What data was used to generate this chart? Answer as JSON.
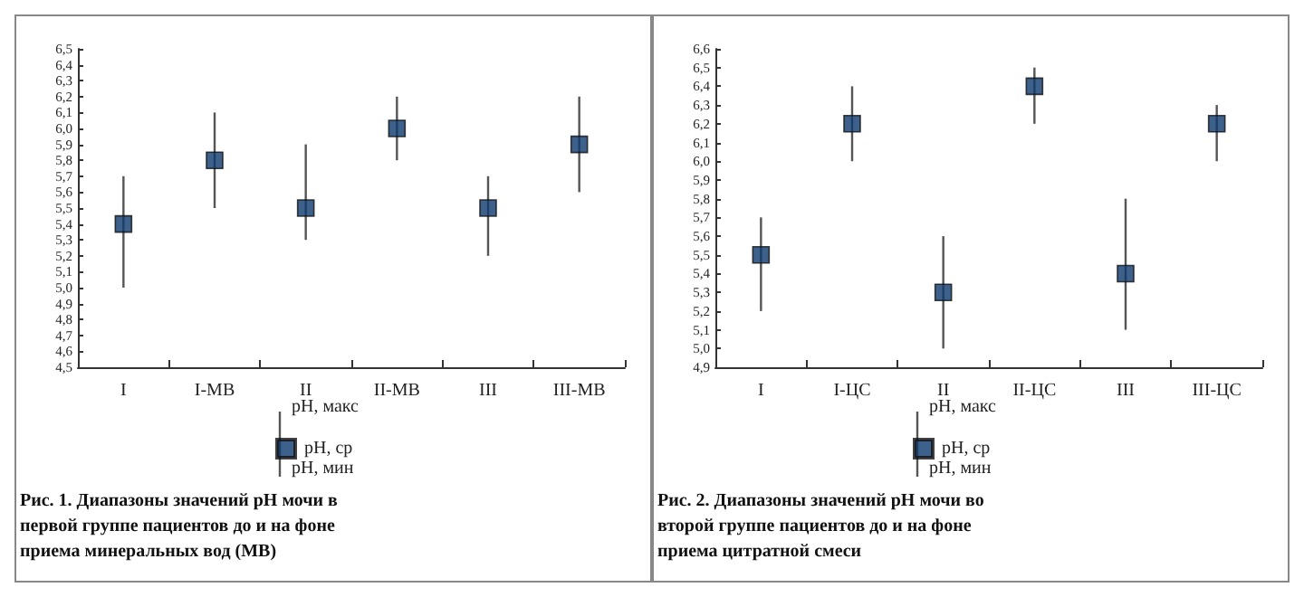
{
  "chart_data": [
    {
      "type": "scatter",
      "title": "Рис. 1. Диапазоны значений pH мочи в первой группе пациентов до и на фоне приема минеральных вод (МВ)",
      "categories": [
        "I",
        "I-МВ",
        "II",
        "II-МВ",
        "III",
        "III-МВ"
      ],
      "series": [
        {
          "name": "pH, ср",
          "color": "#0d3a6e",
          "values": [
            5.4,
            5.8,
            5.5,
            6.0,
            5.5,
            5.9
          ],
          "errors": [
            [
              5.0,
              5.7
            ],
            [
              5.5,
              6.1
            ],
            [
              5.3,
              5.9
            ],
            [
              5.8,
              6.2
            ],
            [
              5.2,
              5.7
            ],
            [
              5.6,
              6.2
            ]
          ]
        }
      ],
      "marker": "square",
      "legend": "bottom",
      "annotations": [
        "pH, макс",
        "pH, мин"
      ],
      "grid": false,
      "ylim": [
        4.5,
        6.5
      ],
      "yticks": [
        {
          "value": 4.5,
          "label": "4,5"
        },
        {
          "value": 4.6,
          "label": "4,6"
        },
        {
          "value": 4.7,
          "label": "4,7"
        },
        {
          "value": 4.8,
          "label": "4,8"
        },
        {
          "value": 4.9,
          "label": "4,9"
        },
        {
          "value": 5.0,
          "label": "5,0"
        },
        {
          "value": 5.1,
          "label": "5,1"
        },
        {
          "value": 5.2,
          "label": "5,2"
        },
        {
          "value": 5.3,
          "label": "5,3"
        },
        {
          "value": 5.4,
          "label": "5,4"
        },
        {
          "value": 5.5,
          "label": "5,5"
        },
        {
          "value": 5.6,
          "label": "5,6"
        },
        {
          "value": 5.7,
          "label": "5,7"
        },
        {
          "value": 5.8,
          "label": "5,8"
        },
        {
          "value": 5.9,
          "label": "5,9"
        },
        {
          "value": 6.0,
          "label": "6,0"
        },
        {
          "value": 6.1,
          "label": "6,1"
        },
        {
          "value": 6.2,
          "label": "6,2"
        },
        {
          "value": 6.3,
          "label": "6,3"
        },
        {
          "value": 6.4,
          "label": "6,4"
        },
        {
          "value": 6.5,
          "label": "6,5"
        }
      ]
    },
    {
      "type": "scatter",
      "title": "Рис. 2. Диапазоны значений pH мочи во второй группе пациентов до и на фоне приема цитратной смеси",
      "categories": [
        "I",
        "I-ЦС",
        "II",
        "II-ЦС",
        "III",
        "III-ЦС"
      ],
      "series": [
        {
          "name": "pH, ср",
          "color": "#0d3a6e",
          "values": [
            5.5,
            6.2,
            5.3,
            6.4,
            5.4,
            6.2
          ],
          "errors": [
            [
              5.2,
              5.7
            ],
            [
              6.0,
              6.4
            ],
            [
              5.0,
              5.6
            ],
            [
              6.2,
              6.5
            ],
            [
              5.1,
              5.8
            ],
            [
              6.0,
              6.3
            ]
          ]
        }
      ],
      "marker": "square",
      "legend": "bottom",
      "annotations": [
        "pH, макс",
        "pH, мин"
      ],
      "grid": false,
      "ylim": [
        4.9,
        6.6
      ],
      "yticks": [
        {
          "value": 4.9,
          "label": "4,9"
        },
        {
          "value": 5.0,
          "label": "5,0"
        },
        {
          "value": 5.1,
          "label": "5,1"
        },
        {
          "value": 5.2,
          "label": "5,2"
        },
        {
          "value": 5.3,
          "label": "5,3"
        },
        {
          "value": 5.4,
          "label": "5,4"
        },
        {
          "value": 5.5,
          "label": "5,5"
        },
        {
          "value": 5.6,
          "label": "5,6"
        },
        {
          "value": 5.7,
          "label": "5,7"
        },
        {
          "value": 5.8,
          "label": "5,8"
        },
        {
          "value": 5.9,
          "label": "5,9"
        },
        {
          "value": 6.0,
          "label": "6,0"
        },
        {
          "value": 6.1,
          "label": "6,1"
        },
        {
          "value": 6.2,
          "label": "6,2"
        },
        {
          "value": 6.3,
          "label": "6,3"
        },
        {
          "value": 6.4,
          "label": "6,4"
        },
        {
          "value": 6.5,
          "label": "6,5"
        },
        {
          "value": 6.6,
          "label": "6,6"
        }
      ]
    }
  ]
}
